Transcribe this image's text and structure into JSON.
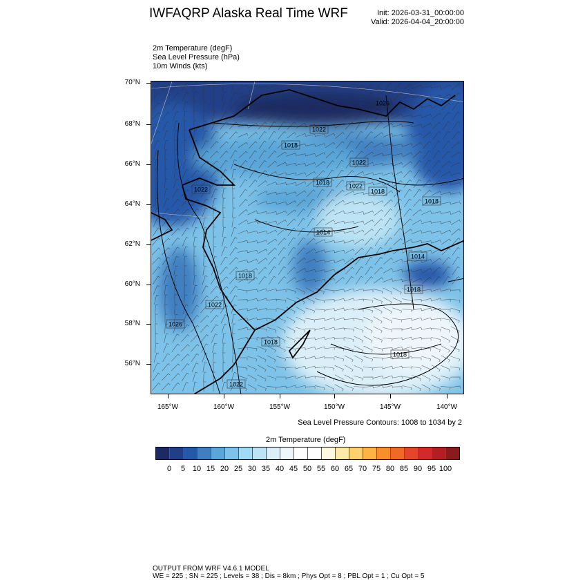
{
  "header": {
    "title": "IWFAQRP Alaska Real Time WRF",
    "init": "Init: 2026-03-31_00:00:00",
    "valid": "Valid: 2026-04-04_20:00:00"
  },
  "fields": [
    "2m Temperature   (degF)",
    "Sea Level Pressure   (hPa)",
    "10m Winds   (kts)"
  ],
  "map": {
    "lat_labels": [
      "70°N",
      "68°N",
      "66°N",
      "64°N",
      "62°N",
      "60°N",
      "58°N",
      "56°N"
    ],
    "lon_labels": [
      "165°W",
      "160°W",
      "155°W",
      "150°W",
      "145°W",
      "140°W"
    ],
    "pressure_labels": [
      "1026",
      "1022",
      "1018",
      "1022",
      "1018",
      "1022",
      "1018",
      "1018",
      "1022",
      "1014",
      "1014",
      "1018",
      "1022",
      "1018",
      "1026",
      "1018",
      "1018",
      "1022"
    ],
    "colors": {
      "cold": "#1e3a7e",
      "mid": "#5aa6d8",
      "light": "#bde4f4",
      "pale": "#eef6fb",
      "coast": "#000000"
    }
  },
  "slp_note": "Sea Level Pressure Contours: 1008 to 1034 by 2",
  "colorbar": {
    "title": "2m Temperature  (degF)",
    "labels": [
      "0",
      "5",
      "10",
      "15",
      "20",
      "25",
      "30",
      "35",
      "40",
      "45",
      "50",
      "55",
      "60",
      "65",
      "70",
      "75",
      "80",
      "85",
      "90",
      "95",
      "100"
    ],
    "colors": [
      "#1b2a63",
      "#213f87",
      "#2658aa",
      "#3f7fc0",
      "#5aa6d8",
      "#7dc2e8",
      "#a0daf5",
      "#bde4f4",
      "#dbeff8",
      "#eef6fb",
      "#ffffff",
      "#ffffff",
      "#fff8e0",
      "#fdeaa8",
      "#fdd26e",
      "#fdb445",
      "#f98f2c",
      "#f06a25",
      "#e2472b",
      "#d22a2a",
      "#b31d24",
      "#8a1b1d"
    ]
  },
  "footer": {
    "line1": "OUTPUT FROM WRF V4.6.1 MODEL",
    "line2": "WE = 225 ; SN = 225 ; Levels = 38 ; Dis = 8km ; Phys Opt = 8 ; PBL Opt = 1 ; Cu Opt = 5"
  }
}
